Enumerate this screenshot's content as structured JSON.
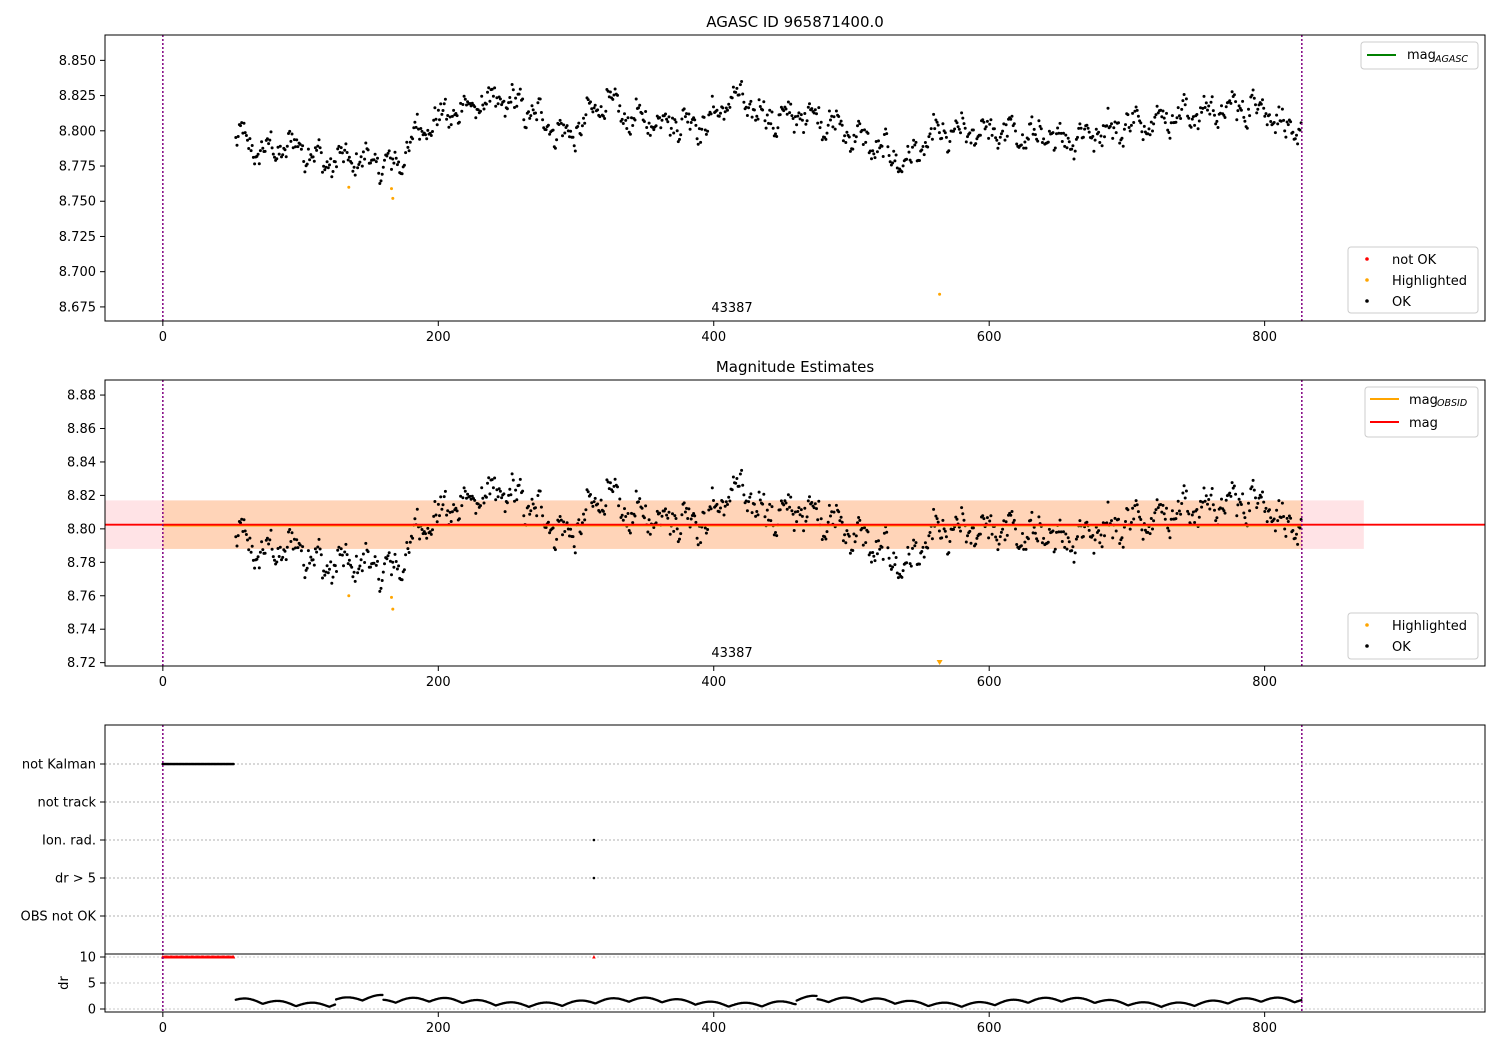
{
  "chart_data": [
    {
      "type": "scatter",
      "title": "AGASC ID 965871400.0",
      "obsid_label": "43387",
      "xlim": [
        -42,
        960
      ],
      "ylim": [
        8.665,
        8.868
      ],
      "x_ticks": [
        0,
        200,
        400,
        600,
        800
      ],
      "y_ticks": [
        8.675,
        8.7,
        8.725,
        8.75,
        8.775,
        8.8,
        8.825,
        8.85
      ],
      "y_tick_labels": [
        "8.675",
        "8.700",
        "8.725",
        "8.750",
        "8.775",
        "8.800",
        "8.825",
        "8.850"
      ],
      "vlines": [
        0,
        827
      ],
      "legend_lines": [
        {
          "label": "mag",
          "sub": "AGASC",
          "color": "#008000"
        }
      ],
      "legend_points": [
        {
          "label": "not OK",
          "color": "#ff0000"
        },
        {
          "label": "Highlighted",
          "color": "#ffa500"
        },
        {
          "label": "OK",
          "color": "#000000"
        }
      ],
      "highlighted_points": [
        [
          135,
          8.76
        ],
        [
          166,
          8.759
        ],
        [
          167,
          8.752
        ],
        [
          564,
          8.684
        ]
      ],
      "series_note": "OK points: dense black scatter from x≈53 to x≈827, y mostly 8.77–8.84"
    },
    {
      "type": "scatter",
      "title": "Magnitude Estimates",
      "obsid_label": "43387",
      "xlim": [
        -42,
        960
      ],
      "ylim": [
        8.718,
        8.889
      ],
      "x_ticks": [
        0,
        200,
        400,
        600,
        800
      ],
      "y_ticks": [
        8.72,
        8.74,
        8.76,
        8.78,
        8.8,
        8.82,
        8.84,
        8.86,
        8.88
      ],
      "y_tick_labels": [
        "8.72",
        "8.74",
        "8.76",
        "8.78",
        "8.80",
        "8.82",
        "8.84",
        "8.86",
        "8.88"
      ],
      "vlines": [
        0,
        827
      ],
      "mag": 8.8025,
      "mag_obsid": 8.802,
      "band": [
        8.788,
        8.817
      ],
      "band_x": [
        -42,
        872
      ],
      "legend_lines": [
        {
          "label": "mag",
          "sub": "OBSID",
          "color": "#ffa500"
        },
        {
          "label": "mag",
          "sub": "",
          "color": "#ff0000"
        }
      ],
      "legend_points": [
        {
          "label": "Highlighted",
          "color": "#ffa500"
        },
        {
          "label": "OK",
          "color": "#000000"
        }
      ],
      "highlighted_points": [
        [
          135,
          8.76
        ],
        [
          166,
          8.759
        ],
        [
          167,
          8.752
        ]
      ]
    },
    {
      "type": "scatter",
      "xlim": [
        -42,
        960
      ],
      "x_ticks": [
        0,
        200,
        400,
        600,
        800
      ],
      "flag_labels": [
        "not Kalman",
        "not track",
        "Ion. rad.",
        "dr > 5",
        "OBS not OK"
      ],
      "flag_points": {
        "not Kalman": {
          "x_range": [
            0,
            52
          ]
        },
        "Ion. rad.": {
          "x": [
            313
          ]
        },
        "dr > 5": {
          "x": [
            313
          ]
        }
      },
      "dr_ylabel": "dr",
      "dr_ticks": [
        0,
        5,
        10
      ],
      "dr_tick_labels": [
        "0",
        "5",
        "10"
      ],
      "dr_clipped": {
        "x_range": [
          0,
          52
        ],
        "extra_x": [
          313
        ],
        "value": 10
      },
      "vlines": [
        0,
        827
      ],
      "dr_note": "dr black points from x≈53 to x≈827, values mostly 0–3"
    }
  ]
}
